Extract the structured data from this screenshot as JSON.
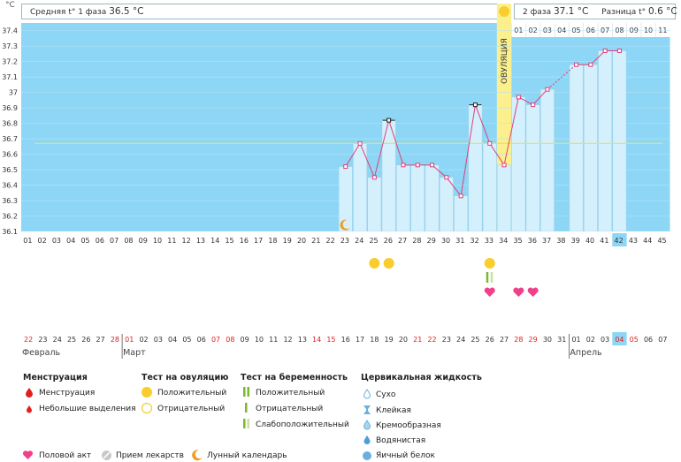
{
  "unit_label": "°C",
  "header": {
    "phase1_label": "Средняя t° 1 фаза",
    "phase1_value": "36.5 °C",
    "phase2_label": "2 фаза",
    "phase2_value": "37.1 °C",
    "diff_label": "Разница t°",
    "diff_value": "0.6 °C"
  },
  "ovulation_label": "ОВУЛЯЦИЯ",
  "chart_data": {
    "type": "line",
    "ylim": [
      36.1,
      37.45
    ],
    "y_ticks": [
      "37.4",
      "37.3",
      "37.2",
      "37.1",
      "37",
      "36.9",
      "36.8",
      "36.7",
      "36.6",
      "36.5",
      "36.4",
      "36.3",
      "36.2",
      "36.1"
    ],
    "cycle_days": [
      "01",
      "02",
      "03",
      "04",
      "05",
      "06",
      "07",
      "08",
      "09",
      "10",
      "11",
      "12",
      "13",
      "14",
      "15",
      "16",
      "17",
      "18",
      "19",
      "20",
      "21",
      "22",
      "23",
      "24",
      "25",
      "26",
      "27",
      "28",
      "29",
      "30",
      "31",
      "32",
      "33",
      "34",
      "35",
      "36",
      "37",
      "38",
      "39",
      "40",
      "41",
      "42",
      "43",
      "44",
      "45"
    ],
    "dpo_labels": [
      "01",
      "02",
      "03",
      "04",
      "05",
      "06",
      "07",
      "08",
      "09",
      "10",
      "11"
    ],
    "cover_line": 36.67,
    "ovulation_day": 34,
    "today_day": 42,
    "temperatures": [
      {
        "day": 23,
        "t": 36.52
      },
      {
        "day": 24,
        "t": 36.67
      },
      {
        "day": 25,
        "t": 36.45
      },
      {
        "day": 26,
        "t": 36.82
      },
      {
        "day": 27,
        "t": 36.53
      },
      {
        "day": 28,
        "t": 36.53
      },
      {
        "day": 29,
        "t": 36.53
      },
      {
        "day": 30,
        "t": 36.45
      },
      {
        "day": 31,
        "t": 36.33
      },
      {
        "day": 32,
        "t": 36.92
      },
      {
        "day": 33,
        "t": 36.67
      },
      {
        "day": 34,
        "t": 36.53
      },
      {
        "day": 35,
        "t": 36.97
      },
      {
        "day": 36,
        "t": 36.92
      },
      {
        "day": 37,
        "t": 37.02
      },
      {
        "day": 39,
        "t": 37.18
      },
      {
        "day": 40,
        "t": 37.18
      },
      {
        "day": 41,
        "t": 37.27
      },
      {
        "day": 42,
        "t": 37.27
      }
    ],
    "excluded_days": [
      26,
      32
    ],
    "dashed_segment": [
      37,
      39
    ]
  },
  "markers": {
    "moon_day": 23,
    "ovulation_test_positive_days": [
      25,
      26,
      33
    ],
    "pregnancy_test_day": 33,
    "intercourse_days": [
      33,
      35,
      36
    ]
  },
  "calendar": {
    "dates": [
      "22",
      "23",
      "24",
      "25",
      "26",
      "27",
      "28",
      "01",
      "02",
      "03",
      "04",
      "05",
      "06",
      "07",
      "08",
      "09",
      "10",
      "11",
      "12",
      "13",
      "14",
      "15",
      "16",
      "17",
      "18",
      "19",
      "20",
      "21",
      "22",
      "23",
      "24",
      "25",
      "26",
      "27",
      "28",
      "29",
      "30",
      "31",
      "01",
      "02",
      "03",
      "04",
      "05",
      "06",
      "07"
    ],
    "weekend_idx": [
      0,
      6,
      7,
      13,
      14,
      20,
      21,
      27,
      28,
      34,
      35,
      41,
      42
    ],
    "months": [
      "Февраль",
      "Март",
      "Апрель"
    ]
  },
  "legend": {
    "menstruation_title": "Менструация",
    "menstruation": "Менструация",
    "spotting": "Небольшие выделения",
    "ovtest_title": "Тест на овуляцию",
    "ovtest_pos": "Положительный",
    "ovtest_neg": "Отрицательный",
    "preg_title": "Тест на беременность",
    "preg_pos": "Положительный",
    "preg_neg": "Отрицательный",
    "preg_weak": "Слабоположительный",
    "cervical_title": "Цервикальная жидкость",
    "cm_dry": "Сухо",
    "cm_sticky": "Клейкая",
    "cm_creamy": "Кремообразная",
    "cm_watery": "Водянистая",
    "cm_eggwhite": "Яичный белок",
    "intercourse": "Половой акт",
    "medication": "Прием лекарств",
    "lunar": "Лунный календарь"
  },
  "colors": {
    "sky": "#8dd6f5",
    "bar": "#d4f0fc",
    "line": "#e0407a",
    "ovulation": "#fbef8e",
    "yellow": "#f8cd2c",
    "green": "#7cb82f",
    "pink": "#f0408a",
    "red": "#e02020",
    "blue": "#6ab0dc",
    "orange": "#f39a1e"
  }
}
